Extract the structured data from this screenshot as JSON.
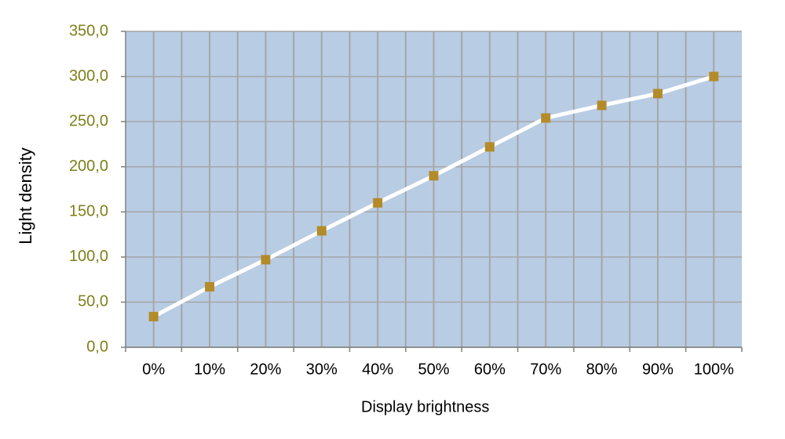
{
  "chart_data": {
    "type": "line",
    "x_label": "Display brightness",
    "y_label": "Light density",
    "categories": [
      "0%",
      "10%",
      "20%",
      "30%",
      "40%",
      "50%",
      "60%",
      "70%",
      "80%",
      "90%",
      "100%"
    ],
    "series": [
      {
        "name": "Light density",
        "color": "#b38b2a",
        "values": [
          34,
          67,
          97,
          129,
          160,
          190,
          222,
          254,
          268,
          281,
          300
        ]
      }
    ],
    "ylim": [
      0,
      350
    ],
    "yticks": [
      {
        "value": 0,
        "label": "0,0"
      },
      {
        "value": 50,
        "label": "50,0"
      },
      {
        "value": 100,
        "label": "100,0"
      },
      {
        "value": 150,
        "label": "150,0"
      },
      {
        "value": 200,
        "label": "200,0"
      },
      {
        "value": 250,
        "label": "250,0"
      },
      {
        "value": 300,
        "label": "300,0"
      },
      {
        "value": 350,
        "label": "350,0"
      }
    ],
    "grid": true
  }
}
